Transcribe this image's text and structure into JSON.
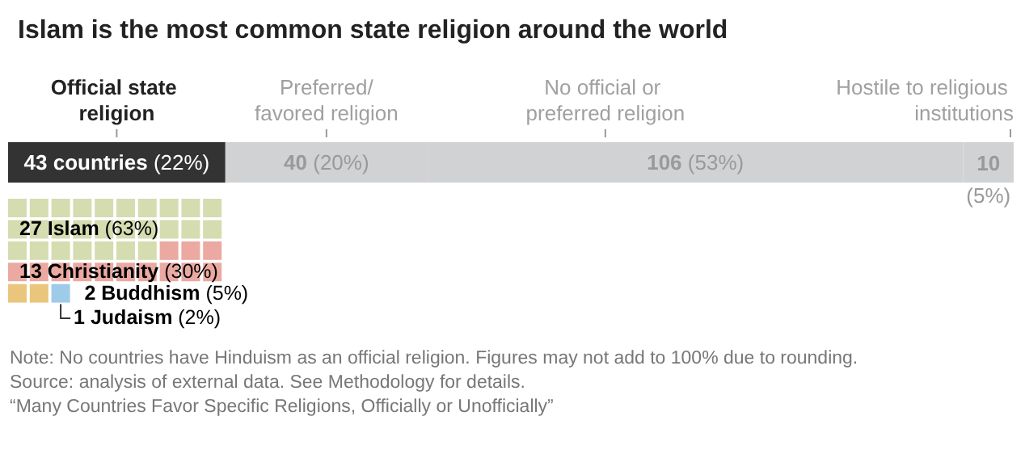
{
  "chart_data": [
    {
      "type": "bar",
      "title": "Islam is the most common state religion around the world",
      "orientation": "horizontal",
      "stacked": true,
      "categories": [
        null
      ],
      "series": [
        {
          "name": "Official state religion",
          "color": "#333333",
          "values": [
            43
          ],
          "value_labels": [
            "43 countries (22%)"
          ]
        },
        {
          "name": "Preferred/favored religion",
          "color": "#d1d2d4",
          "values": [
            40
          ],
          "value_labels": [
            "40 (20%)"
          ]
        },
        {
          "name": "No official or preferred religion",
          "color": "#d1d2d4",
          "values": [
            106
          ],
          "value_labels": [
            "106 (53%)"
          ]
        },
        {
          "name": "Hostile to religious institutions",
          "color": "#d1d2d4",
          "values": [
            10
          ],
          "value_labels": [
            "10 (5%)"
          ]
        }
      ]
    },
    {
      "type": "other",
      "values": [
        27,
        13,
        2,
        1
      ],
      "value_labels": [
        "27 Islam (63%)",
        "13 Christianity (30%)",
        "2 Buddhism (5%)",
        "1 Judaism (2%)"
      ],
      "colors": [
        "#d5dcb0",
        "#eba9a2",
        "#eac67d",
        "#9ecbe8"
      ],
      "annotations": [
        "Note: No countries have Hinduism as an official religion. Figures may not add to 100% due to rounding.",
        "Source: analysis of external data. See Methodology for details.",
        "“Many Countries Favor Specific Religions, Officially or Unofficially”"
      ]
    }
  ]
}
